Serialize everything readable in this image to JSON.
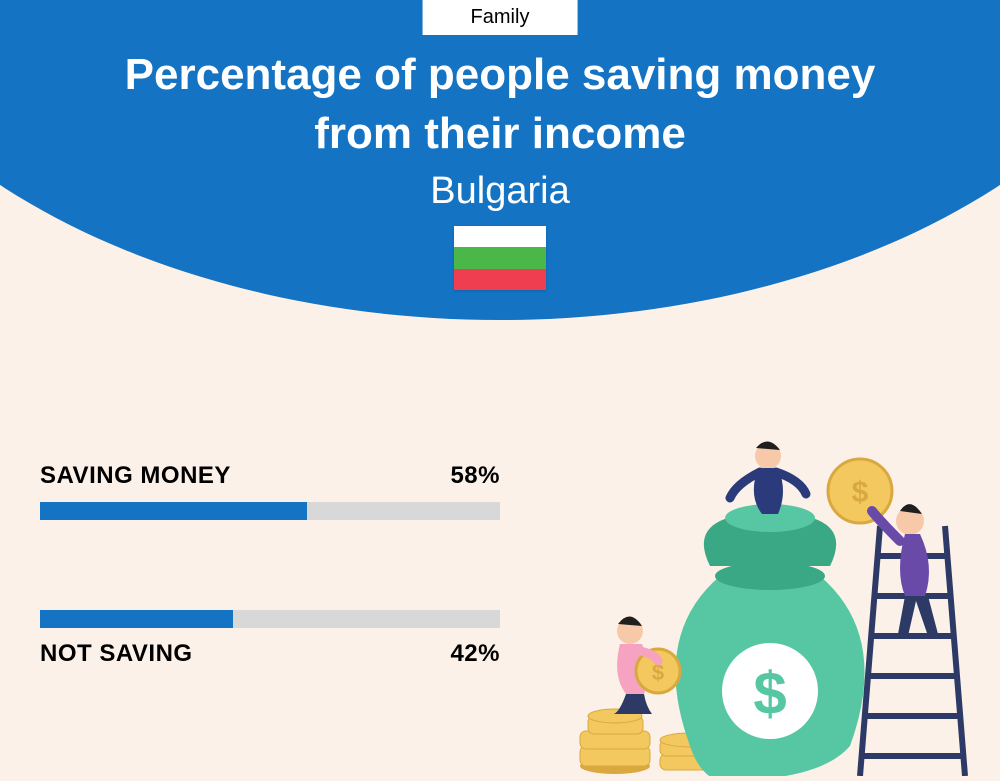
{
  "header": {
    "category": "Family",
    "title_line1": "Percentage of people saving money",
    "title_line2": "from their income",
    "country": "Bulgaria",
    "curve_color": "#1473c3",
    "text_color": "#ffffff",
    "flag_stripes": [
      "#ffffff",
      "#4bb749",
      "#ee3e50"
    ]
  },
  "bars": {
    "track_color": "#d8d8d8",
    "fill_color": "#1473c3",
    "label_color": "#000000",
    "label_fontsize": 24,
    "items": [
      {
        "label": "SAVING MONEY",
        "value": 58,
        "value_text": "58%",
        "label_position": "above"
      },
      {
        "label": "NOT SAVING",
        "value": 42,
        "value_text": "42%",
        "label_position": "below"
      }
    ]
  },
  "illustration": {
    "bag_color": "#56c7a2",
    "bag_dark": "#3aa884",
    "coin_color": "#f2c85f",
    "coin_edge": "#d9a93f",
    "ladder_color": "#2e3a66",
    "person1_top": "#2b3a7a",
    "person1_bottom": "#2e3a66",
    "person2_top": "#f5a3c0",
    "person2_bottom": "#2e3a66",
    "person3_top": "#6a4aa8",
    "person3_bottom": "#2e3a66",
    "skin": "#f7c9a8",
    "hair": "#1f1f1f"
  },
  "background_color": "#fbf1e8"
}
